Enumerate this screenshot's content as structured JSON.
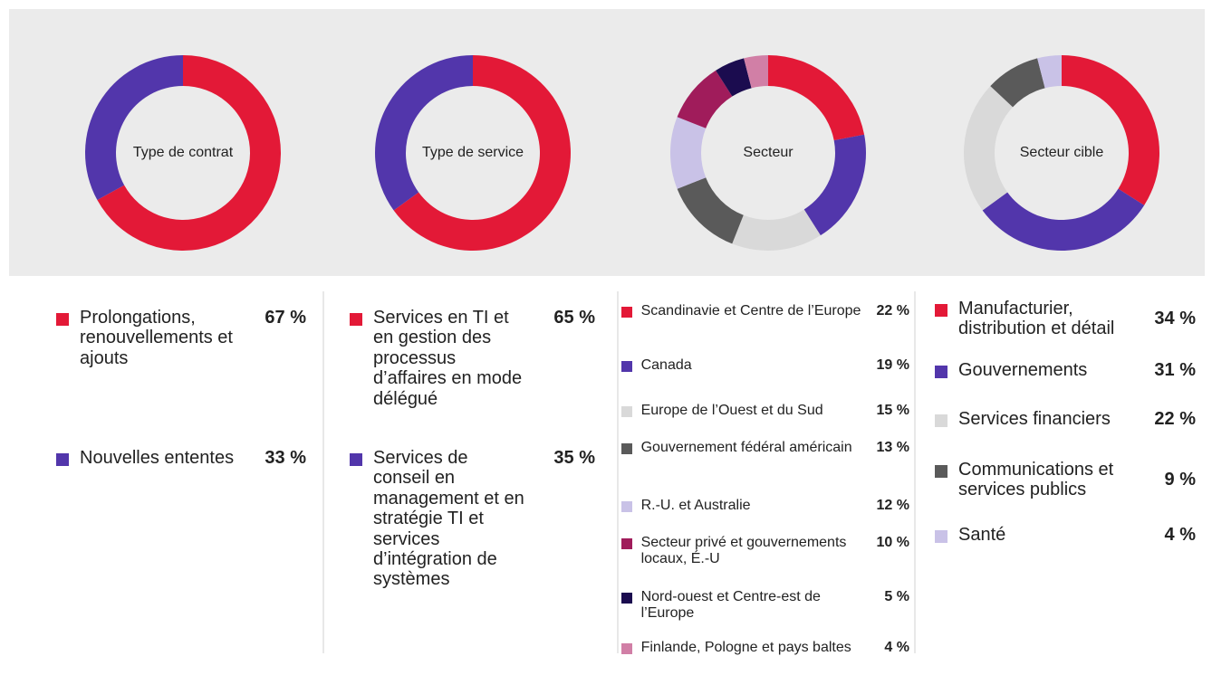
{
  "chart_data": [
    {
      "type": "pie",
      "title": "Type de contrat",
      "categories": [
        "Prolongations, renouvellements et ajouts",
        "Nouvelles ententes"
      ],
      "values": [
        67,
        33
      ],
      "value_labels": [
        "67 %",
        "33 %"
      ],
      "colors": [
        "#e31937",
        "#5236ab"
      ]
    },
    {
      "type": "pie",
      "title": "Type de service",
      "categories": [
        "Services en TI et en gestion des processus d’affaires en mode délégué",
        "Services de conseil en management et en stratégie TI et services d’intégration de systèmes"
      ],
      "values": [
        65,
        35
      ],
      "value_labels": [
        "65 %",
        "35 %"
      ],
      "colors": [
        "#e31937",
        "#5236ab"
      ]
    },
    {
      "type": "pie",
      "title": "Secteur",
      "categories": [
        "Scandinavie et Centre de l’Europe",
        "Canada",
        "Europe de l’Ouest et du Sud",
        "Gouvernement fédéral américain",
        "R.-U. et Australie",
        "Secteur privé et gouvernements locaux, É.-U",
        "Nord-ouest et Centre-est de l’Europe",
        "Finlande, Pologne et pays baltes"
      ],
      "values": [
        22,
        19,
        15,
        13,
        12,
        10,
        5,
        4
      ],
      "value_labels": [
        "22 %",
        "19 %",
        "15 %",
        "13 %",
        "12 %",
        "10 %",
        "5 %",
        "4 %"
      ],
      "colors": [
        "#e31937",
        "#5236ab",
        "#d9d9d9",
        "#5a5a5a",
        "#c9c2e7",
        "#a01c5b",
        "#1b0c4f",
        "#d17fa6"
      ]
    },
    {
      "type": "pie",
      "title": "Secteur cible",
      "categories": [
        "Manufacturier, distribution et détail",
        "Gouvernements",
        "Services financiers",
        "Communications et services publics",
        "Santé"
      ],
      "values": [
        34,
        31,
        22,
        9,
        4
      ],
      "value_labels": [
        "34 %",
        "31 %",
        "22 %",
        "9 %",
        "4 %"
      ],
      "colors": [
        "#e31937",
        "#5236ab",
        "#d9d9d9",
        "#5a5a5a",
        "#c9c2e7"
      ]
    }
  ]
}
